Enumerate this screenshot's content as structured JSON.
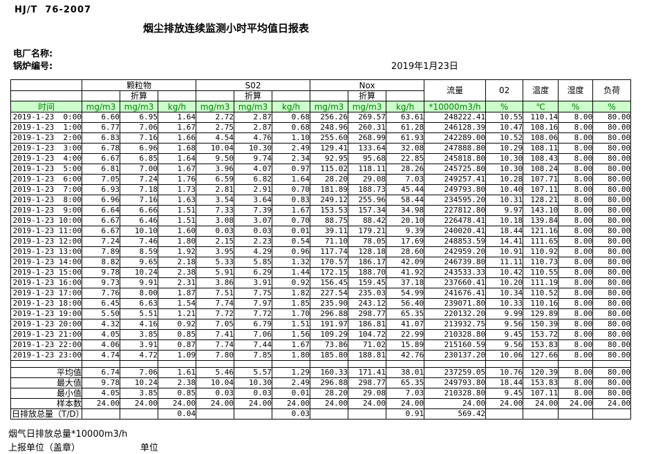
{
  "page": {
    "standard_code": "HJ/T  76-2007",
    "title": "烟尘排放连续监测小时平均值日报表",
    "plant_name_label": "电厂名称:",
    "boiler_no_label": "锅炉编号:",
    "date": "2019年1月23日",
    "footer_flue_total_label": "烟气日排放总量*10000m3/h",
    "report_unit_label": "上报单位（盖章）",
    "unit_label": "单位"
  },
  "colors": {
    "header_green_bg": "#ccffcc",
    "header_green_text": "#008000",
    "border": "#000000"
  },
  "table": {
    "time_header": "时间",
    "converted_label": "折算",
    "groups": [
      {
        "label": "颗粒物"
      },
      {
        "label": "S02"
      },
      {
        "label": "Nox"
      }
    ],
    "flow_header": "流量",
    "o2_header": "02",
    "temp_header": "温度",
    "humidity_header": "湿度",
    "load_header": "负荷",
    "units": [
      "mg/m3",
      "mg/m3",
      "kg/h",
      "mg/m3",
      "mg/m3",
      "kg/h",
      "mg/m3",
      "mg/m3",
      "kg/h",
      "*10000m3/h",
      "%",
      "℃",
      "%",
      "%"
    ],
    "rows": [
      {
        "time": "2019-1-23  0:00",
        "values": [
          "6.60",
          "6.95",
          "1.64",
          "2.72",
          "2.87",
          "0.68",
          "256.26",
          "269.57",
          "63.61",
          "248222.41",
          "10.55",
          "110.14",
          "8.00",
          "80.00"
        ]
      },
      {
        "time": "2019-1-23  1:00",
        "values": [
          "6.77",
          "7.06",
          "1.67",
          "2.75",
          "2.87",
          "0.68",
          "248.96",
          "260.31",
          "61.28",
          "246128.39",
          "10.47",
          "108.16",
          "8.00",
          "80.00"
        ]
      },
      {
        "time": "2019-1-23  2:00",
        "values": [
          "6.83",
          "7.16",
          "1.66",
          "4.54",
          "4.76",
          "1.10",
          "255.60",
          "268.99",
          "61.93",
          "242289.00",
          "10.52",
          "108.06",
          "8.00",
          "80.00"
        ]
      },
      {
        "time": "2019-1-23  3:00",
        "values": [
          "6.78",
          "6.96",
          "1.68",
          "10.04",
          "10.30",
          "2.49",
          "129.41",
          "133.64",
          "32.08",
          "247888.80",
          "10.29",
          "108.11",
          "8.00",
          "80.00"
        ]
      },
      {
        "time": "2019-1-23  4:00",
        "values": [
          "6.67",
          "6.85",
          "1.64",
          "9.50",
          "9.74",
          "2.34",
          "92.95",
          "95.68",
          "22.85",
          "245818.80",
          "10.30",
          "108.43",
          "8.00",
          "80.00"
        ]
      },
      {
        "time": "2019-1-23  5:00",
        "values": [
          "6.81",
          "7.00",
          "1.67",
          "3.96",
          "4.07",
          "0.97",
          "115.02",
          "118.11",
          "28.26",
          "245725.80",
          "10.30",
          "108.24",
          "8.00",
          "80.00"
        ]
      },
      {
        "time": "2019-1-23  6:00",
        "values": [
          "7.05",
          "7.24",
          "1.76",
          "6.59",
          "6.82",
          "1.64",
          "28.20",
          "29.08",
          "7.03",
          "249257.41",
          "10.28",
          "107.71",
          "8.00",
          "80.00"
        ]
      },
      {
        "time": "2019-1-23  7:00",
        "values": [
          "6.93",
          "7.18",
          "1.73",
          "2.81",
          "2.91",
          "0.70",
          "181.89",
          "188.73",
          "45.44",
          "249793.80",
          "10.40",
          "107.11",
          "8.00",
          "80.00"
        ]
      },
      {
        "time": "2019-1-23  8:00",
        "values": [
          "6.96",
          "7.16",
          "1.63",
          "3.54",
          "3.64",
          "0.83",
          "249.12",
          "255.96",
          "58.44",
          "234595.20",
          "10.31",
          "128.21",
          "8.00",
          "80.00"
        ]
      },
      {
        "time": "2019-1-23  9:00",
        "values": [
          "6.64",
          "6.66",
          "1.51",
          "7.33",
          "7.39",
          "1.67",
          "153.53",
          "157.34",
          "34.98",
          "227812.80",
          "9.97",
          "143.10",
          "8.00",
          "80.00"
        ]
      },
      {
        "time": "2019-1-23 10:00",
        "values": [
          "6.67",
          "6.46",
          "1.51",
          "3.08",
          "3.07",
          "0.70",
          "88.75",
          "88.42",
          "20.10",
          "226478.41",
          "10.18",
          "139.84",
          "8.00",
          "80.00"
        ]
      },
      {
        "time": "2019-1-23 11:00",
        "values": [
          "6.67",
          "10.10",
          "1.60",
          "0.03",
          "0.03",
          "0.01",
          "39.11",
          "179.21",
          "9.39",
          "240020.41",
          "18.44",
          "121.16",
          "8.00",
          "80.00"
        ]
      },
      {
        "time": "2019-1-23 12:00",
        "values": [
          "7.24",
          "7.46",
          "1.80",
          "2.15",
          "2.23",
          "0.54",
          "71.10",
          "78.05",
          "17.69",
          "248853.59",
          "14.41",
          "111.65",
          "8.00",
          "80.00"
        ]
      },
      {
        "time": "2019-1-23 13:00",
        "values": [
          "7.89",
          "8.59",
          "1.92",
          "3.95",
          "4.29",
          "0.96",
          "117.74",
          "128.18",
          "28.60",
          "242959.20",
          "10.91",
          "110.92",
          "8.00",
          "80.00"
        ]
      },
      {
        "time": "2019-1-23 14:00",
        "values": [
          "8.82",
          "9.65",
          "2.18",
          "5.33",
          "5.85",
          "1.32",
          "170.57",
          "186.17",
          "42.09",
          "246739.80",
          "11.11",
          "110.73",
          "8.00",
          "80.00"
        ]
      },
      {
        "time": "2019-1-23 15:00",
        "values": [
          "9.78",
          "10.24",
          "2.38",
          "5.91",
          "6.29",
          "1.44",
          "172.15",
          "188.70",
          "41.92",
          "243533.33",
          "10.42",
          "110.55",
          "8.00",
          "80.00"
        ]
      },
      {
        "time": "2019-1-23 16:00",
        "values": [
          "9.73",
          "9.91",
          "2.31",
          "3.86",
          "3.91",
          "0.92",
          "156.45",
          "159.45",
          "37.18",
          "237660.41",
          "10.20",
          "111.19",
          "8.00",
          "80.00"
        ]
      },
      {
        "time": "2019-1-23 17:00",
        "values": [
          "7.76",
          "8.00",
          "1.87",
          "7.51",
          "7.75",
          "1.82",
          "227.54",
          "235.03",
          "54.99",
          "241676.41",
          "10.34",
          "110.52",
          "8.00",
          "80.00"
        ]
      },
      {
        "time": "2019-1-23 18:00",
        "values": [
          "6.45",
          "6.63",
          "1.54",
          "7.74",
          "7.97",
          "1.85",
          "235.90",
          "243.12",
          "56.40",
          "239071.80",
          "10.33",
          "110.16",
          "8.00",
          "80.00"
        ]
      },
      {
        "time": "2019-1-23 19:00",
        "values": [
          "5.50",
          "5.51",
          "1.21",
          "7.72",
          "7.72",
          "1.70",
          "296.88",
          "298.77",
          "65.35",
          "220132.20",
          "9.99",
          "129.89",
          "8.00",
          "80.00"
        ]
      },
      {
        "time": "2019-1-23 20:00",
        "values": [
          "4.32",
          "4.16",
          "0.92",
          "7.05",
          "6.79",
          "1.51",
          "191.97",
          "186.81",
          "41.07",
          "213932.75",
          "9.56",
          "150.39",
          "8.00",
          "80.00"
        ]
      },
      {
        "time": "2019-1-23 21:00",
        "values": [
          "4.05",
          "3.85",
          "0.85",
          "7.41",
          "7.06",
          "1.56",
          "109.29",
          "104.72",
          "22.99",
          "210328.80",
          "9.45",
          "153.72",
          "8.00",
          "80.00"
        ]
      },
      {
        "time": "2019-1-23 22:00",
        "values": [
          "4.06",
          "3.91",
          "0.87",
          "7.74",
          "7.44",
          "1.67",
          "73.86",
          "71.02",
          "15.89",
          "215160.59",
          "9.56",
          "153.83",
          "8.00",
          "80.00"
        ]
      },
      {
        "time": "2019-1-23 23:00",
        "values": [
          "4.74",
          "4.72",
          "1.09",
          "7.80",
          "7.85",
          "1.80",
          "185.80",
          "188.81",
          "42.76",
          "230137.20",
          "10.06",
          "127.66",
          "8.00",
          "80.00"
        ]
      }
    ],
    "summary_rows": [
      {
        "label": "平均值",
        "values": [
          "6.74",
          "7.06",
          "1.61",
          "5.46",
          "5.57",
          "1.29",
          "160.33",
          "171.41",
          "38.01",
          "237259.05",
          "10.76",
          "120.39",
          "8.00",
          "80.00"
        ]
      },
      {
        "label": "最大值",
        "values": [
          "9.78",
          "10.24",
          "2.38",
          "10.04",
          "10.30",
          "2.49",
          "296.88",
          "298.77",
          "65.35",
          "249793.80",
          "18.44",
          "153.83",
          "8.00",
          "80.00"
        ]
      },
      {
        "label": "最小值",
        "values": [
          "4.05",
          "3.85",
          "0.85",
          "0.03",
          "0.03",
          "0.01",
          "28.20",
          "29.08",
          "7.03",
          "210328.80",
          "9.45",
          "107.11",
          "8.00",
          "80.00"
        ]
      },
      {
        "label": "样本数",
        "values": [
          "24.00",
          "24.00",
          "24.00",
          "24.00",
          "24.00",
          "24.00",
          "24.00",
          "24.00",
          "24.00",
          "24.00",
          "24.00",
          "24.00",
          "24.00",
          "24.00"
        ]
      },
      {
        "label": "日排放总量（T/D）",
        "values": [
          "",
          "",
          "0.04",
          "",
          "",
          "0.03",
          "",
          "",
          "0.91",
          "569.42",
          "",
          "",
          "",
          ""
        ]
      }
    ]
  }
}
